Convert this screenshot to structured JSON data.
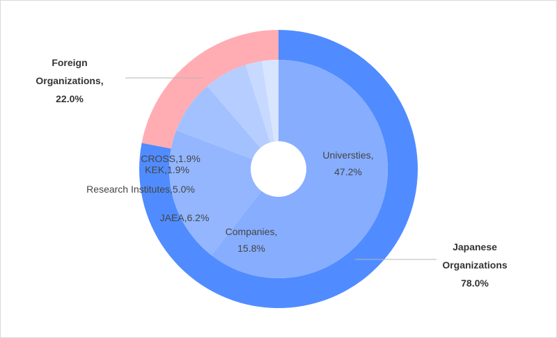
{
  "chart_data": {
    "type": "pie",
    "variant": "nested-donut",
    "outer": [
      {
        "lines": [
          "Japanese",
          "Organizations",
          "78.0%"
        ],
        "value": 78.0,
        "color": "#508cff"
      },
      {
        "lines": [
          "Foreign",
          "Organizations,",
          "22.0%"
        ],
        "value": 22.0,
        "color": "#ffadb3"
      }
    ],
    "inner": [
      {
        "lines": [
          "Universties,",
          "47.2%"
        ],
        "value": 47.2,
        "color": "#87adff"
      },
      {
        "lines": [
          "Companies,",
          "15.8%"
        ],
        "value": 15.8,
        "color": "#93b6ff"
      },
      {
        "lines": [
          "JAEA,6.2%"
        ],
        "value": 6.2,
        "color": "#a4c1ff"
      },
      {
        "lines": [
          "Research Institutes,5.0%"
        ],
        "value": 5.0,
        "color": "#b5cdff"
      },
      {
        "lines": [
          "KEK,1.9%"
        ],
        "value": 1.9,
        "color": "#c8d9ff"
      },
      {
        "lines": [
          "CROSS,1.9%"
        ],
        "value": 1.9,
        "color": "#d8e5ff"
      }
    ],
    "legend": "none"
  }
}
